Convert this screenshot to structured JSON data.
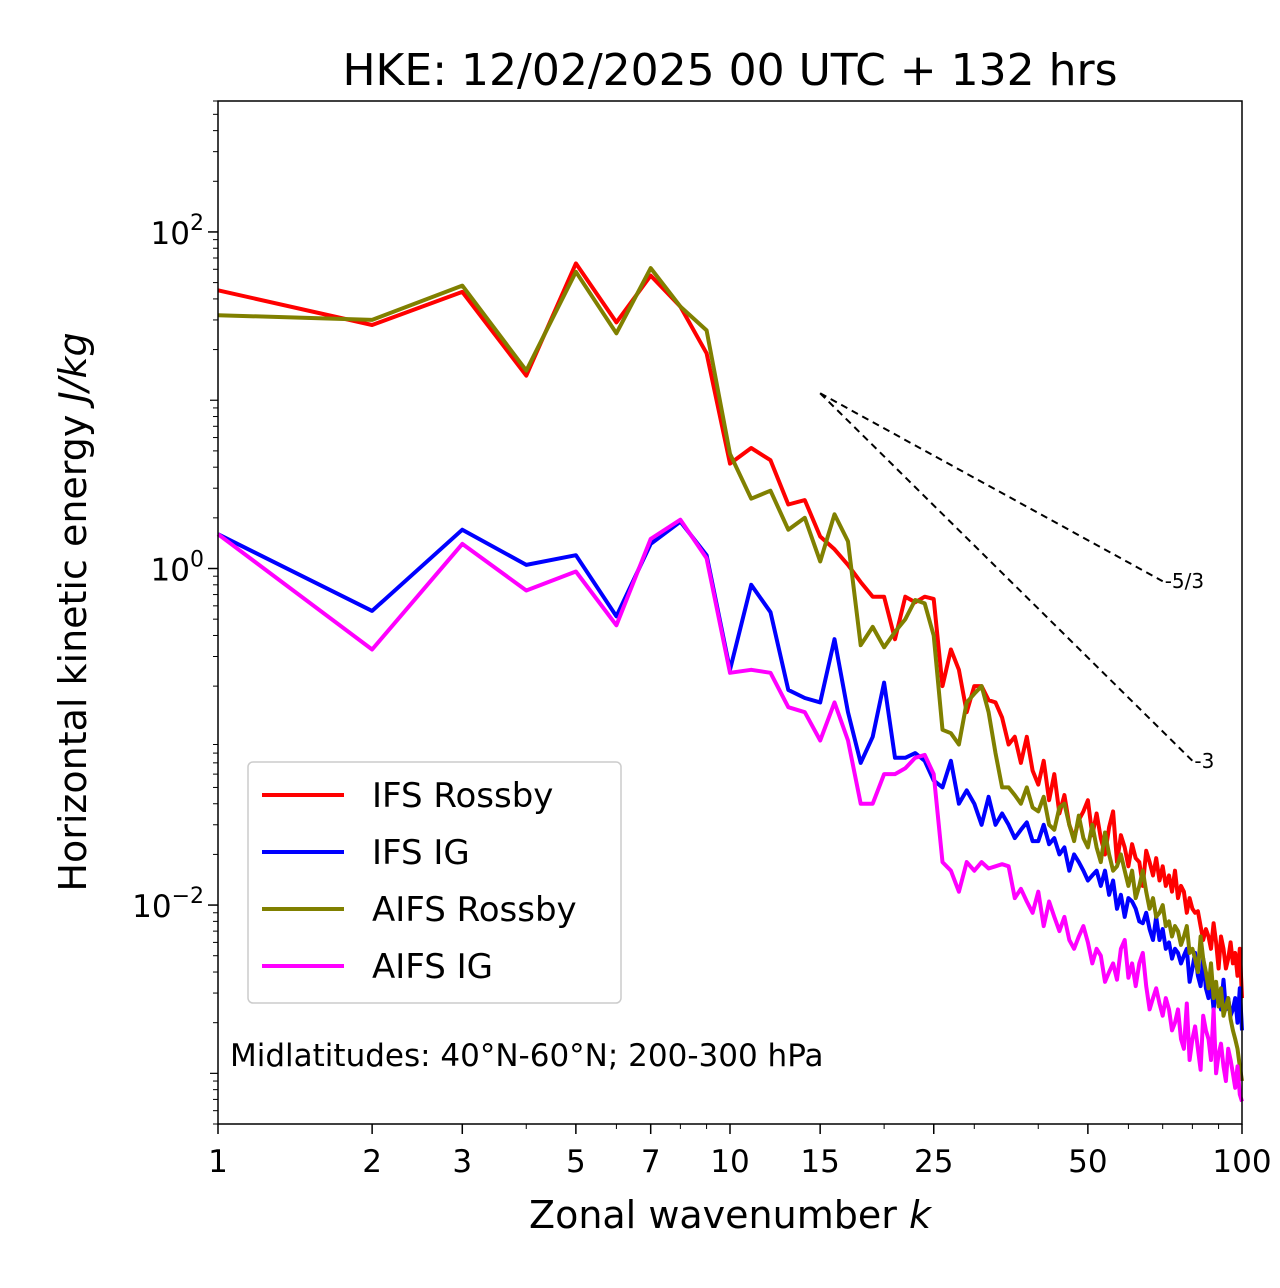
{
  "chart_data": {
    "type": "line",
    "title": "HKE: 12/02/2025 00 UTC + 132 hrs",
    "xlabel": "Zonal wavenumber ",
    "xlabel_var": "k",
    "ylabel": "Horizontal kinetic energy ",
    "ylabel_unit": "J/kg",
    "xscale": "log",
    "yscale": "log",
    "xlim": [
      1,
      100
    ],
    "ylim": [
      0.0005,
      600
    ],
    "x_ticks": [
      1,
      2,
      3,
      5,
      7,
      10,
      15,
      25,
      50,
      100
    ],
    "x_tick_labels": [
      "1",
      "2",
      "3",
      "5",
      "7",
      "10",
      "15",
      "25",
      "50",
      "100"
    ],
    "y_ticks": [
      100,
      1,
      0.01
    ],
    "y_tick_bases": [
      "10",
      "10",
      "10"
    ],
    "y_tick_exps": [
      "2",
      "0",
      "−2"
    ],
    "legend_position": "lower-left",
    "annotation": "Midlatitudes: 40°N-60°N; 200-300 hPa",
    "reference_lines": [
      {
        "label": "-5/3",
        "slope": -1.6667,
        "x": [
          15,
          70
        ],
        "y": [
          11,
          0.84
        ]
      },
      {
        "label": "-3",
        "slope": -3,
        "x": [
          15,
          80
        ],
        "y": [
          11,
          0.072
        ]
      }
    ],
    "series": [
      {
        "name": "IFS Rossby",
        "color": "#ff0000",
        "x": [
          1,
          2,
          3,
          4,
          5,
          6,
          7,
          8,
          9,
          10,
          11,
          12,
          13,
          14,
          15,
          16,
          17,
          18,
          19,
          20,
          21,
          22,
          23,
          24,
          25,
          26,
          27,
          28,
          29,
          30,
          31,
          32,
          33,
          34,
          35,
          36,
          37,
          38,
          39,
          40,
          41,
          42,
          43,
          44,
          45,
          46,
          47,
          48,
          49,
          50,
          51,
          52,
          53,
          54,
          55,
          56,
          57,
          58,
          59,
          60,
          61,
          62,
          63,
          64,
          65,
          66,
          67,
          68,
          69,
          70,
          71,
          72,
          73,
          74,
          75,
          76,
          77,
          78,
          79,
          80,
          81,
          82,
          83,
          84,
          85,
          86,
          87,
          88,
          89,
          90,
          91,
          92,
          93,
          94,
          95,
          96,
          97,
          98,
          99,
          100
        ],
        "y": [
          45,
          28,
          44,
          14,
          65,
          29,
          55,
          36,
          19,
          4.2,
          5.2,
          4.4,
          2.4,
          2.55,
          1.55,
          1.3,
          1.05,
          0.83,
          0.68,
          0.68,
          0.38,
          0.68,
          0.63,
          0.68,
          0.66,
          0.2,
          0.33,
          0.25,
          0.14,
          0.2,
          0.2,
          0.165,
          0.16,
          0.13,
          0.09,
          0.1,
          0.07,
          0.1,
          0.063,
          0.052,
          0.072,
          0.042,
          0.06,
          0.035,
          0.045,
          0.03,
          0.025,
          0.032,
          0.036,
          0.042,
          0.026,
          0.035,
          0.025,
          0.02,
          0.029,
          0.036,
          0.018,
          0.026,
          0.022,
          0.017,
          0.023,
          0.019,
          0.018,
          0.013,
          0.021,
          0.018,
          0.015,
          0.019,
          0.014,
          0.017,
          0.013,
          0.015,
          0.012,
          0.016,
          0.011,
          0.013,
          0.012,
          0.009,
          0.011,
          0.0095,
          0.009,
          0.0092,
          0.0075,
          0.0062,
          0.0072,
          0.0065,
          0.0055,
          0.0078,
          0.006,
          0.0042,
          0.0065,
          0.0055,
          0.0042,
          0.0048,
          0.006,
          0.0045,
          0.0052,
          0.0038,
          0.0055,
          0.0028
        ]
      },
      {
        "name": "IFS IG",
        "color": "#0000ff",
        "x": [
          1,
          2,
          3,
          4,
          5,
          6,
          7,
          8,
          9,
          10,
          11,
          12,
          13,
          14,
          15,
          16,
          17,
          18,
          19,
          20,
          21,
          22,
          23,
          24,
          25,
          26,
          27,
          28,
          29,
          30,
          31,
          32,
          33,
          34,
          35,
          36,
          37,
          38,
          39,
          40,
          41,
          42,
          43,
          44,
          45,
          46,
          47,
          48,
          49,
          50,
          51,
          52,
          53,
          54,
          55,
          56,
          57,
          58,
          59,
          60,
          61,
          62,
          63,
          64,
          65,
          66,
          67,
          68,
          69,
          70,
          71,
          72,
          73,
          74,
          75,
          76,
          77,
          78,
          79,
          80,
          81,
          82,
          83,
          84,
          85,
          86,
          87,
          88,
          89,
          90,
          91,
          92,
          93,
          94,
          95,
          96,
          97,
          98,
          99,
          100
        ],
        "y": [
          1.6,
          0.56,
          1.7,
          1.05,
          1.2,
          0.52,
          1.4,
          1.9,
          1.2,
          0.25,
          0.8,
          0.55,
          0.19,
          0.17,
          0.16,
          0.38,
          0.14,
          0.07,
          0.1,
          0.21,
          0.075,
          0.075,
          0.08,
          0.072,
          0.055,
          0.05,
          0.072,
          0.04,
          0.048,
          0.04,
          0.03,
          0.044,
          0.03,
          0.035,
          0.03,
          0.025,
          0.028,
          0.031,
          0.024,
          0.024,
          0.03,
          0.023,
          0.025,
          0.02,
          0.022,
          0.016,
          0.02,
          0.018,
          0.016,
          0.014,
          0.015,
          0.016,
          0.013,
          0.016,
          0.0115,
          0.014,
          0.0095,
          0.0115,
          0.0085,
          0.011,
          0.0105,
          0.0095,
          0.008,
          0.0078,
          0.009,
          0.0072,
          0.0062,
          0.0085,
          0.0062,
          0.0072,
          0.0055,
          0.006,
          0.0048,
          0.0055,
          0.0052,
          0.0045,
          0.005,
          0.0055,
          0.0035,
          0.0042,
          0.0052,
          0.0038,
          0.0033,
          0.0048,
          0.0032,
          0.0028,
          0.0035,
          0.0024,
          0.0032,
          0.0028,
          0.0024,
          0.0036,
          0.0024,
          0.0028,
          0.0022,
          0.0024,
          0.0028,
          0.002,
          0.0032,
          0.0018
        ]
      },
      {
        "name": "AIFS Rossby",
        "color": "#808000",
        "x": [
          1,
          2,
          3,
          4,
          5,
          6,
          7,
          8,
          9,
          10,
          11,
          12,
          13,
          14,
          15,
          16,
          17,
          18,
          19,
          20,
          21,
          22,
          23,
          24,
          25,
          26,
          27,
          28,
          29,
          30,
          31,
          32,
          33,
          34,
          35,
          36,
          37,
          38,
          39,
          40,
          41,
          42,
          43,
          44,
          45,
          46,
          47,
          48,
          49,
          50,
          51,
          52,
          53,
          54,
          55,
          56,
          57,
          58,
          59,
          60,
          61,
          62,
          63,
          64,
          65,
          66,
          67,
          68,
          69,
          70,
          71,
          72,
          73,
          74,
          75,
          76,
          77,
          78,
          79,
          80,
          81,
          82,
          83,
          84,
          85,
          86,
          87,
          88,
          89,
          90,
          91,
          92,
          93,
          94,
          95,
          96,
          97,
          98,
          99,
          100
        ],
        "y": [
          32,
          30,
          48,
          15,
          58,
          25,
          61,
          36,
          26,
          4.8,
          2.6,
          2.9,
          1.7,
          2.0,
          1.1,
          2.1,
          1.45,
          0.35,
          0.45,
          0.34,
          0.42,
          0.5,
          0.65,
          0.62,
          0.4,
          0.11,
          0.105,
          0.09,
          0.16,
          0.18,
          0.2,
          0.14,
          0.08,
          0.05,
          0.05,
          0.045,
          0.04,
          0.05,
          0.038,
          0.036,
          0.044,
          0.03,
          0.028,
          0.038,
          0.04,
          0.03,
          0.024,
          0.034,
          0.025,
          0.022,
          0.03,
          0.022,
          0.018,
          0.027,
          0.02,
          0.016,
          0.017,
          0.02,
          0.016,
          0.013,
          0.016,
          0.011,
          0.013,
          0.016,
          0.012,
          0.0095,
          0.011,
          0.0085,
          0.009,
          0.01,
          0.0075,
          0.008,
          0.0065,
          0.0075,
          0.007,
          0.0058,
          0.0065,
          0.0075,
          0.0052,
          0.0055,
          0.0048,
          0.004,
          0.0065,
          0.0048,
          0.004,
          0.0032,
          0.0045,
          0.0028,
          0.0035,
          0.0025,
          0.0032,
          0.0022,
          0.0025,
          0.0028,
          0.0021,
          0.0018,
          0.0016,
          0.0014,
          0.0011,
          0.0009
        ]
      },
      {
        "name": "AIFS IG",
        "color": "#ff00ff",
        "x": [
          1,
          2,
          3,
          4,
          5,
          6,
          7,
          8,
          9,
          10,
          11,
          12,
          13,
          14,
          15,
          16,
          17,
          18,
          19,
          20,
          21,
          22,
          23,
          24,
          25,
          26,
          27,
          28,
          29,
          30,
          31,
          32,
          33,
          34,
          35,
          36,
          37,
          38,
          39,
          40,
          41,
          42,
          43,
          44,
          45,
          46,
          47,
          48,
          49,
          50,
          51,
          52,
          53,
          54,
          55,
          56,
          57,
          58,
          59,
          60,
          61,
          62,
          63,
          64,
          65,
          66,
          67,
          68,
          69,
          70,
          71,
          72,
          73,
          74,
          75,
          76,
          77,
          78,
          79,
          80,
          81,
          82,
          83,
          84,
          85,
          86,
          87,
          88,
          89,
          90,
          91,
          92,
          93,
          94,
          95,
          96,
          97,
          98,
          99,
          100
        ],
        "y": [
          1.6,
          0.33,
          1.4,
          0.74,
          0.96,
          0.46,
          1.5,
          1.95,
          1.15,
          0.24,
          0.25,
          0.24,
          0.15,
          0.14,
          0.095,
          0.16,
          0.095,
          0.04,
          0.04,
          0.06,
          0.06,
          0.065,
          0.075,
          0.078,
          0.06,
          0.018,
          0.016,
          0.012,
          0.018,
          0.016,
          0.018,
          0.0165,
          0.017,
          0.0175,
          0.017,
          0.011,
          0.0125,
          0.0105,
          0.009,
          0.012,
          0.0075,
          0.0105,
          0.0085,
          0.007,
          0.0085,
          0.0062,
          0.0055,
          0.0065,
          0.0075,
          0.006,
          0.0045,
          0.0055,
          0.005,
          0.0035,
          0.004,
          0.0045,
          0.0036,
          0.0055,
          0.0062,
          0.0037,
          0.0045,
          0.0033,
          0.0045,
          0.0052,
          0.0033,
          0.0024,
          0.0028,
          0.0032,
          0.0026,
          0.0022,
          0.0028,
          0.0024,
          0.0018,
          0.002,
          0.0024,
          0.0016,
          0.0014,
          0.0026,
          0.0012,
          0.0016,
          0.0019,
          0.0014,
          0.00105,
          0.0022,
          0.0018,
          0.0016,
          0.0012,
          0.0024,
          0.001,
          0.0013,
          0.0015,
          0.0011,
          0.0009,
          0.0014,
          0.0012,
          0.001,
          0.00082,
          0.0011,
          0.00075,
          0.00068
        ]
      }
    ]
  }
}
